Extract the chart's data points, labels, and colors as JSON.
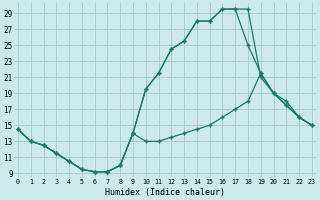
{
  "bg_color": "#cceaea",
  "grid_color": "#aacccc",
  "line_color": "#1a7a6a",
  "xlim_min": -0.3,
  "xlim_max": 23.3,
  "ylim_min": 8.5,
  "ylim_max": 30.2,
  "xlabel": "Humidex (Indice chaleur)",
  "xtick_labels": [
    "0",
    "1",
    "2",
    "3",
    "4",
    "5",
    "6",
    "7",
    "8",
    "9",
    "10",
    "11",
    "12",
    "13",
    "14",
    "15",
    "16",
    "17",
    "18",
    "19",
    "20",
    "21",
    "22",
    "23"
  ],
  "ytick_vals": [
    9,
    11,
    13,
    15,
    17,
    19,
    21,
    23,
    25,
    27,
    29
  ],
  "line1_x": [
    0,
    1,
    2,
    3,
    4,
    5,
    6,
    7,
    8,
    9,
    10,
    11,
    12,
    13,
    14,
    15,
    16,
    17,
    18,
    19,
    20,
    21,
    22,
    23
  ],
  "line1_y": [
    14.5,
    13,
    12.5,
    11.5,
    10.5,
    9.5,
    9.2,
    9.2,
    10.0,
    14.0,
    19.5,
    21.5,
    24.5,
    25.5,
    28.0,
    28.0,
    29.5,
    29.5,
    29.5,
    21.0,
    19.0,
    17.5,
    16.0,
    15.0
  ],
  "line2_x": [
    0,
    1,
    2,
    3,
    4,
    5,
    6,
    7,
    8,
    9,
    10,
    11,
    12,
    13,
    14,
    15,
    16,
    17,
    18,
    19,
    20,
    21,
    22,
    23
  ],
  "line2_y": [
    14.5,
    13,
    12.5,
    11.5,
    10.5,
    9.5,
    9.2,
    9.2,
    10.0,
    14.0,
    19.5,
    21.5,
    24.5,
    25.5,
    28.0,
    28.0,
    29.5,
    29.5,
    25.0,
    21.5,
    19.0,
    17.5,
    16.0,
    15.0
  ],
  "line3_x": [
    0,
    1,
    2,
    3,
    4,
    5,
    6,
    7,
    8,
    9,
    10,
    11,
    12,
    13,
    14,
    15,
    16,
    17,
    18,
    19,
    20,
    21,
    22,
    23
  ],
  "line3_y": [
    14.5,
    13,
    12.5,
    11.5,
    10.5,
    9.5,
    9.2,
    9.2,
    10.0,
    14.0,
    13.0,
    13.0,
    13.5,
    14.0,
    14.5,
    15.0,
    16.0,
    17.0,
    18.0,
    21.5,
    19.0,
    18.0,
    16.0,
    15.0
  ]
}
